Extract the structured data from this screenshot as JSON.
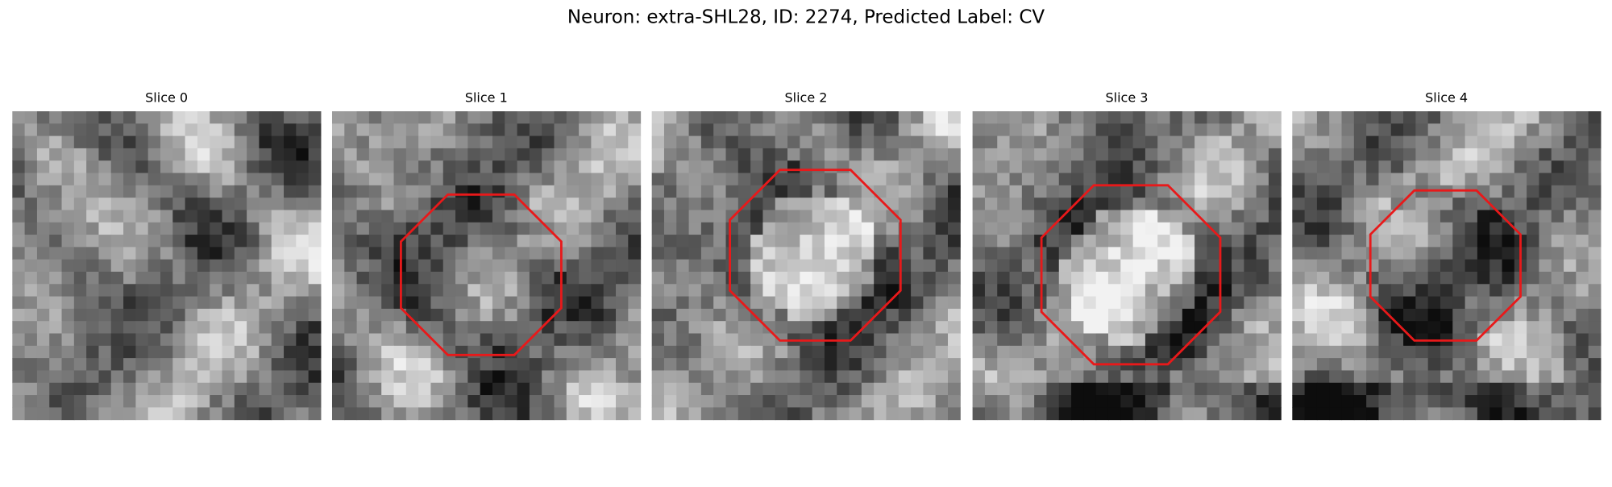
{
  "title": "Neuron: extra-SHL28, ID: 2274, Predicted Label: CV",
  "panels": [
    {
      "title": "Slice 0"
    },
    {
      "title": "Slice 1"
    },
    {
      "title": "Slice 2"
    },
    {
      "title": "Slice 3"
    },
    {
      "title": "Slice 4"
    }
  ]
}
